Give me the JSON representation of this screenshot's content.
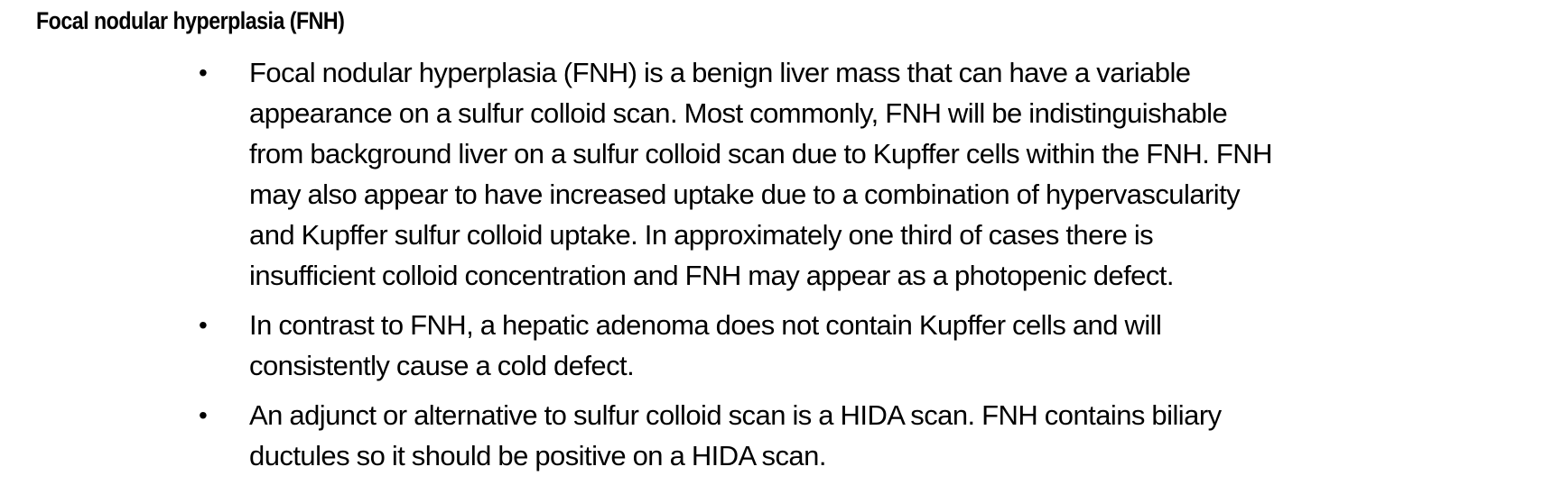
{
  "document": {
    "heading": "Focal nodular hyperplasia (FNH)",
    "bullet_symbol": "•",
    "bullets": [
      {
        "lines": [
          "Focal nodular hyperplasia (FNH) is a benign liver mass that can have a variable",
          "appearance on a sulfur colloid scan. Most commonly, FNH will be indistinguishable",
          "from background liver on a sulfur colloid scan due to Kupffer cells within the FNH. FNH",
          "may also appear to have increased uptake due to a combination of hypervascularity",
          "and Kupffer sulfur colloid uptake. In approximately one third of cases there is",
          "insufficient colloid concentration and FNH may appear as a photopenic defect."
        ]
      },
      {
        "lines": [
          "In contrast to FNH, a hepatic adenoma does not contain Kupffer cells and will",
          "consistently cause a cold defect."
        ]
      },
      {
        "lines": [
          "An adjunct or alternative to sulfur colloid scan is a HIDA scan. FNH contains biliary",
          "ductules so it should be positive on a HIDA scan."
        ]
      }
    ]
  }
}
